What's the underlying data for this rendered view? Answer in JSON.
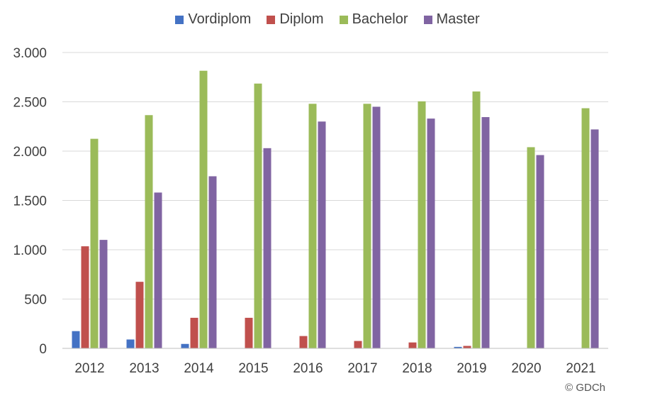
{
  "chart_data": {
    "type": "bar",
    "categories": [
      "2012",
      "2013",
      "2014",
      "2015",
      "2016",
      "2017",
      "2018",
      "2019",
      "2020",
      "2021"
    ],
    "series": [
      {
        "name": "Vordiplom",
        "color": "#4472c4",
        "values": [
          175,
          90,
          45,
          0,
          0,
          0,
          0,
          15,
          0,
          0
        ]
      },
      {
        "name": "Diplom",
        "color": "#c0504d",
        "values": [
          1035,
          675,
          310,
          310,
          125,
          75,
          60,
          25,
          0,
          0
        ]
      },
      {
        "name": "Bachelor",
        "color": "#9bbb59",
        "values": [
          2125,
          2365,
          2815,
          2685,
          2480,
          2480,
          2505,
          2605,
          2040,
          2435
        ]
      },
      {
        "name": "Master",
        "color": "#8064a2",
        "values": [
          1100,
          1580,
          1745,
          2030,
          2300,
          2450,
          2330,
          2345,
          1960,
          2220
        ]
      }
    ],
    "ylim": [
      0,
      3000
    ],
    "yticks": [
      0,
      500,
      1000,
      1500,
      2000,
      2500,
      3000
    ],
    "ytick_labels": [
      "0",
      "500",
      "1.000",
      "1.500",
      "2.000",
      "2.500",
      "3.000"
    ],
    "grid": true,
    "legend_position": "top-center"
  },
  "copyright": "© GDCh"
}
